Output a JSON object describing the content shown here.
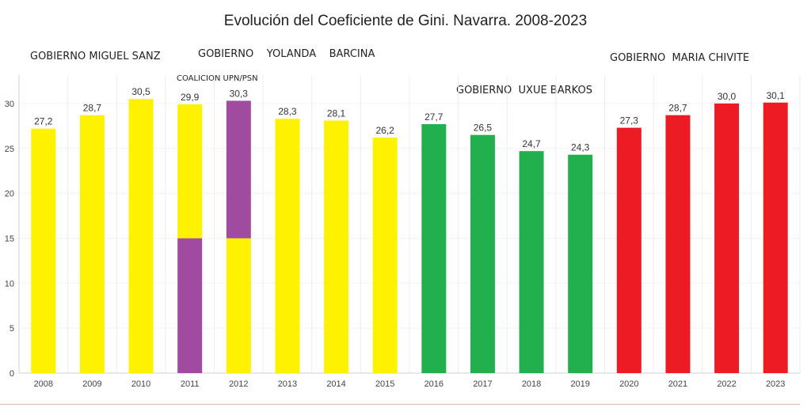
{
  "chart_data": {
    "type": "bar",
    "title": "Evolución del Coeficiente de Gini. Navarra. 2008-2023",
    "xlabel": "",
    "ylabel": "",
    "ylim": [
      0,
      33
    ],
    "yticks": [
      0,
      5,
      10,
      15,
      20,
      25,
      30
    ],
    "grid": true,
    "categories": [
      "2008",
      "2009",
      "2010",
      "2011",
      "2012",
      "2013",
      "2014",
      "2015",
      "2016",
      "2017",
      "2018",
      "2019",
      "2020",
      "2021",
      "2022",
      "2023"
    ],
    "values": [
      27.2,
      28.7,
      30.5,
      29.9,
      30.3,
      28.3,
      28.1,
      26.2,
      27.7,
      26.5,
      24.7,
      24.3,
      27.3,
      28.7,
      30.0,
      30.1
    ],
    "value_labels": [
      "27,2",
      "28,7",
      "30,5",
      "29,9",
      "30,3",
      "28,3",
      "28,1",
      "26,2",
      "27,7",
      "26,5",
      "24,7",
      "24,3",
      "27,3",
      "28,7",
      "30,0",
      "30,1"
    ],
    "bar_colors": [
      [
        "yellow"
      ],
      [
        "yellow"
      ],
      [
        "yellow"
      ],
      [
        "purple",
        "yellow"
      ],
      [
        "yellow",
        "purple"
      ],
      [
        "yellow"
      ],
      [
        "yellow"
      ],
      [
        "yellow"
      ],
      [
        "green"
      ],
      [
        "green"
      ],
      [
        "green"
      ],
      [
        "green"
      ],
      [
        "red"
      ],
      [
        "red"
      ],
      [
        "red"
      ],
      [
        "red"
      ]
    ],
    "split_value": 15,
    "colors": {
      "yellow": "#fff200",
      "purple": "#a04aa0",
      "green": "#22b04e",
      "red": "#ed1c24"
    },
    "annotations": [
      {
        "text": "GOBIERNO MIGUEL SANZ",
        "near": "2008-2010"
      },
      {
        "text": "GOBIERNO    YOLANDA    BARCINA",
        "near": "2012-2015"
      },
      {
        "text": "COALICION UPN/PSN",
        "near": "2011-2012"
      },
      {
        "text": "GOBIERNO  UXUE BARKOS",
        "near": "2017-2019"
      },
      {
        "text": "GOBIERNO  MARIA CHIVITE",
        "near": "2020-2023"
      }
    ]
  }
}
